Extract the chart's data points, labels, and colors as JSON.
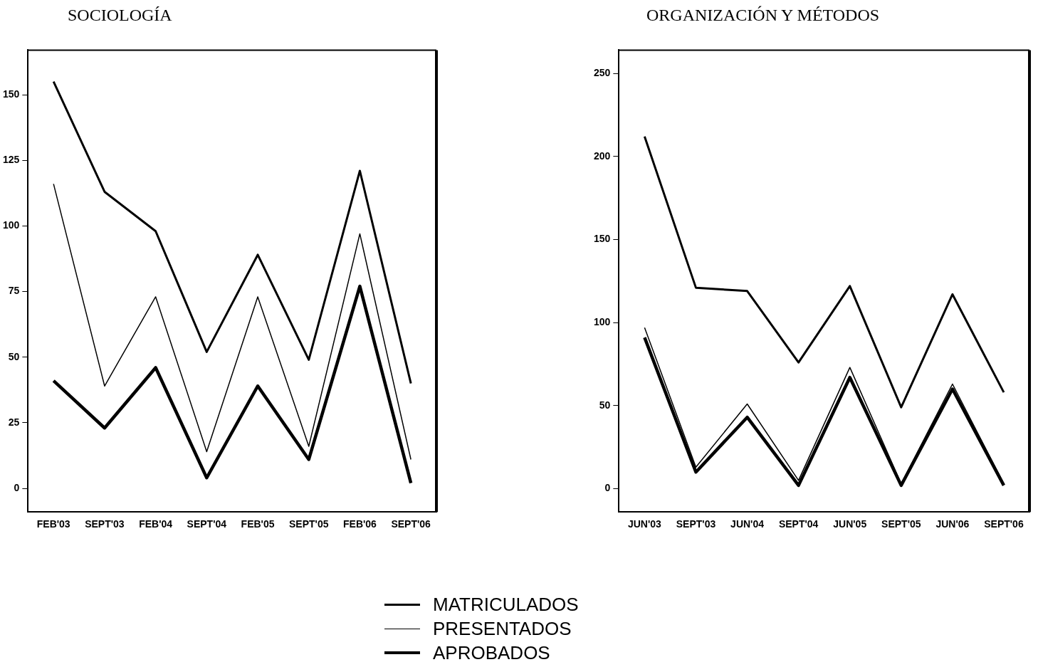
{
  "chart_data": [
    {
      "type": "line",
      "title": "SOCIOLOGÍA",
      "categories": [
        "FEB'03",
        "SEPT'03",
        "FEB'04",
        "SEPT'04",
        "FEB'05",
        "SEPT'05",
        "FEB'06",
        "SEPT'06"
      ],
      "ylim": [
        -9,
        167
      ],
      "yticks": [
        0,
        25,
        50,
        75,
        100,
        125,
        150
      ],
      "grid": false,
      "legend": "bottom",
      "marker": "none",
      "series": [
        {
          "name": "MATRICULADOS",
          "color": "#000000",
          "values": [
            155,
            113,
            98,
            52,
            89,
            49,
            121,
            40
          ]
        },
        {
          "name": "PRESENTADOS",
          "color": "#000000",
          "values": [
            116,
            39,
            73,
            14,
            73,
            16,
            97,
            11
          ]
        },
        {
          "name": "APROBADOS",
          "color": "#000000",
          "values": [
            41,
            23,
            46,
            4,
            39,
            11,
            77,
            2
          ]
        }
      ]
    },
    {
      "type": "line",
      "title": "ORGANIZACIÓN Y MÉTODOS",
      "categories": [
        "JUN'03",
        "SEPT'03",
        "JUN'04",
        "SEPT'04",
        "JUN'05",
        "SEPT'05",
        "JUN'06",
        "SEPT'06"
      ],
      "ylim": [
        -14,
        264
      ],
      "yticks": [
        0,
        50,
        100,
        150,
        200,
        250
      ],
      "grid": false,
      "legend": "bottom",
      "marker": "none",
      "series": [
        {
          "name": "MATRICULADOS",
          "color": "#000000",
          "values": [
            212,
            121,
            119,
            76,
            122,
            49,
            117,
            58
          ]
        },
        {
          "name": "PRESENTADOS",
          "color": "#000000",
          "values": [
            97,
            13,
            51,
            5,
            73,
            3,
            63,
            3
          ]
        },
        {
          "name": "APROBADOS",
          "color": "#000000",
          "values": [
            91,
            10,
            43,
            2,
            67,
            2,
            60,
            2
          ]
        }
      ]
    }
  ]
}
